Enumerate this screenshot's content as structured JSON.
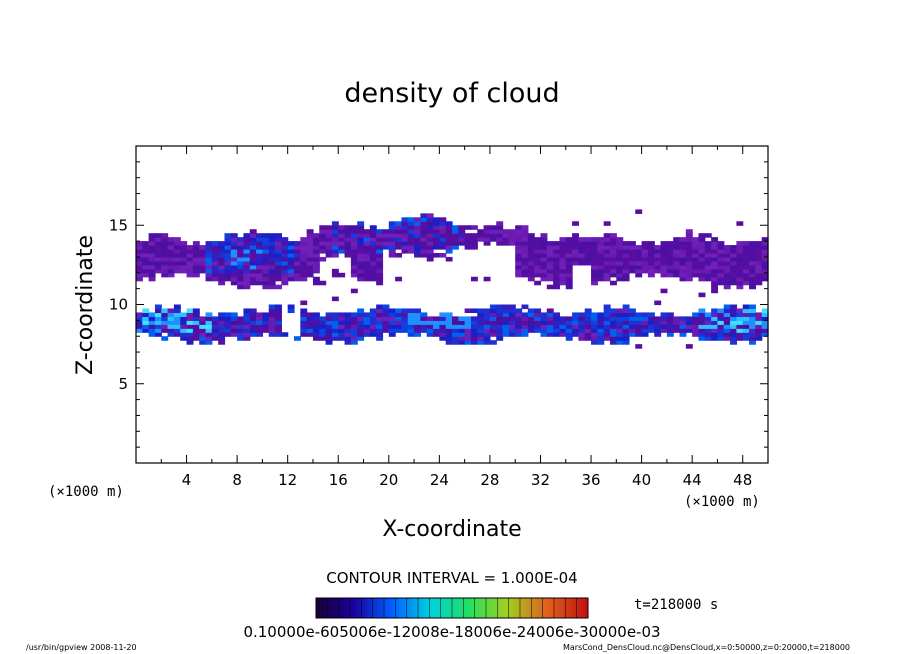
{
  "chart_data": {
    "type": "heatmap",
    "title": "density of cloud",
    "xlabel": "X-coordinate",
    "ylabel": "Z-coordinate",
    "x_unit": "(×1000 m)",
    "xlim": [
      0,
      50
    ],
    "ylim": [
      0,
      20
    ],
    "x_ticks": [
      4,
      8,
      12,
      16,
      20,
      24,
      28,
      32,
      36,
      40,
      44,
      48
    ],
    "y_ticks": [
      5,
      10,
      15
    ],
    "contour_interval_text": "CONTOUR INTERVAL = 1.000E-04",
    "time_text": "t=218000 s",
    "colorbar_label_text": "0.10000e-605006e-12008e-18006e-24006e-30000e-03",
    "colorbar_colors": [
      "#1a0030",
      "#2a0060",
      "#1a00a0",
      "#0020d0",
      "#0060ff",
      "#00a0ff",
      "#00d0e0",
      "#00e0a0",
      "#20e060",
      "#60e020",
      "#a0d020",
      "#d0a020",
      "#e06020",
      "#e03020",
      "#c01010"
    ],
    "cloud_bands": [
      {
        "name": "upper band",
        "x_range": [
          0,
          50
        ],
        "z_range": [
          11,
          15.5
        ],
        "dominant_level": "low (purple)",
        "peak_region_x": [
          5,
          12
        ],
        "peak_level": "medium (blue)"
      },
      {
        "name": "lower band",
        "x_range": [
          0,
          50
        ],
        "z_range": [
          7.5,
          10
        ],
        "dominant_level": "medium (blue)",
        "peak_region_x": [
          0,
          6
        ],
        "peak_level": "high (cyan)"
      }
    ],
    "grid": false
  },
  "footer": {
    "left": "/usr/bin/gpview   2008-11-20",
    "right": "MarsCond_DensCloud.nc@DensCloud,x=0:50000,z=0:20000,t=218000"
  }
}
